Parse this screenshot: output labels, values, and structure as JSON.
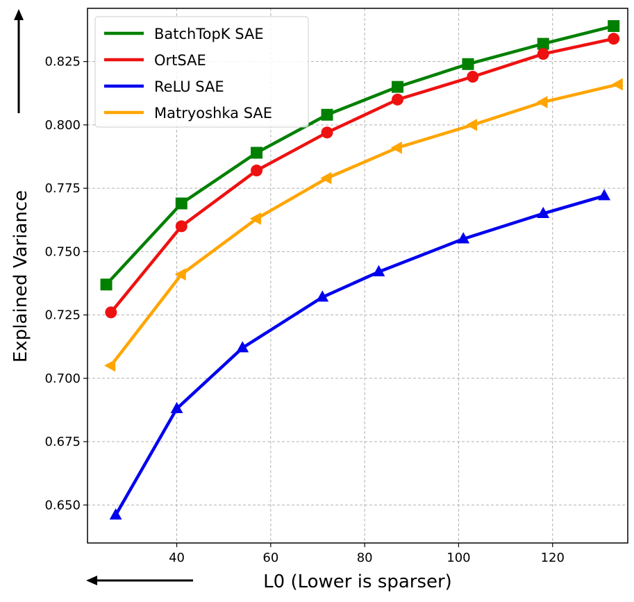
{
  "chart_data": {
    "type": "line",
    "title": "",
    "xlabel": "L0 (Lower is sparser)",
    "ylabel": "Explained Variance",
    "xlim": [
      21,
      136
    ],
    "ylim": [
      0.635,
      0.846
    ],
    "xticks": [
      40,
      60,
      80,
      100,
      120
    ],
    "yticks": [
      0.65,
      0.675,
      0.7,
      0.725,
      0.75,
      0.775,
      0.8,
      0.825
    ],
    "ytick_labels": [
      "0.650",
      "0.675",
      "0.700",
      "0.725",
      "0.750",
      "0.775",
      "0.800",
      "0.825"
    ],
    "grid": true,
    "legend_position": "top-left",
    "series": [
      {
        "name": "BatchTopK SAE",
        "color": "#008000",
        "marker": "square",
        "x": [
          25,
          41,
          57,
          72,
          87,
          102,
          118,
          133
        ],
        "y": [
          0.737,
          0.769,
          0.789,
          0.804,
          0.815,
          0.824,
          0.832,
          0.839
        ]
      },
      {
        "name": "OrtSAE",
        "color": "#ee1111",
        "marker": "circle",
        "x": [
          26,
          41,
          57,
          72,
          87,
          103,
          118,
          133
        ],
        "y": [
          0.726,
          0.76,
          0.782,
          0.797,
          0.81,
          0.819,
          0.828,
          0.834
        ]
      },
      {
        "name": "ReLU SAE",
        "color": "#0000ee",
        "marker": "triangle-up",
        "x": [
          27,
          40,
          54,
          71,
          83,
          101,
          118,
          131
        ],
        "y": [
          0.646,
          0.688,
          0.712,
          0.732,
          0.742,
          0.755,
          0.765,
          0.772
        ]
      },
      {
        "name": "Matryoshka SAE",
        "color": "#ffa500",
        "marker": "triangle-left",
        "x": [
          26,
          41,
          57,
          72,
          87,
          103,
          118,
          134
        ],
        "y": [
          0.705,
          0.741,
          0.763,
          0.779,
          0.791,
          0.8,
          0.809,
          0.816
        ]
      }
    ]
  }
}
